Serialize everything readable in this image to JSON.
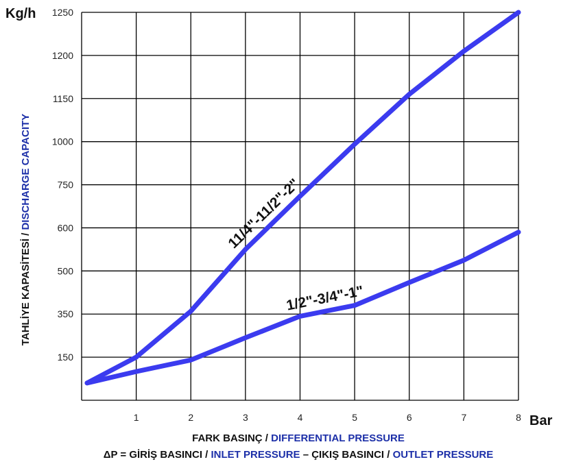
{
  "chart_data": {
    "type": "line",
    "y_unit": "Kg/h",
    "x_unit": "Bar",
    "ylabel": {
      "part_a": "TAHLİYE KAPASİTESİ / ",
      "part_b": "DISCHARGE CAPACITY"
    },
    "x_caption": {
      "line1_a": "FARK BASINÇ / ",
      "line1_b": "DIFFERENTIAL PRESSURE",
      "line2_a": "ΔP = GİRİŞ BASINCI / ",
      "line2_b": "INLET PRESSURE",
      "line2_c": " – ÇIKIŞ BASINCI / ",
      "line2_d": "OUTLET PRESSURE"
    },
    "x_ticks": [
      "1",
      "2",
      "3",
      "4",
      "5",
      "6",
      "7",
      "8"
    ],
    "y_ticks": [
      "150",
      "350",
      "500",
      "600",
      "750",
      "1000",
      "1150",
      "1200",
      "1250"
    ],
    "xlim": [
      0,
      8
    ],
    "y_scale": "non-uniform (tick labels evenly spaced)",
    "grid": true,
    "series": [
      {
        "name": "11/4\"-11/2\"-2\"",
        "color": "#3b3bef",
        "points": [
          [
            0.1,
            60
          ],
          [
            1,
            150
          ],
          [
            2,
            360
          ],
          [
            3,
            550
          ],
          [
            4,
            710
          ],
          [
            5,
            985
          ],
          [
            6,
            1155
          ],
          [
            7,
            1205
          ],
          [
            8,
            1250
          ]
        ]
      },
      {
        "name": "1/2\"-3/4\"-1\"",
        "color": "#3b3bef",
        "points": [
          [
            0.1,
            60
          ],
          [
            1,
            100
          ],
          [
            2,
            140
          ],
          [
            3,
            240
          ],
          [
            4,
            340
          ],
          [
            5,
            380
          ],
          [
            6,
            460
          ],
          [
            7,
            525
          ],
          [
            8,
            590
          ]
        ]
      }
    ]
  }
}
